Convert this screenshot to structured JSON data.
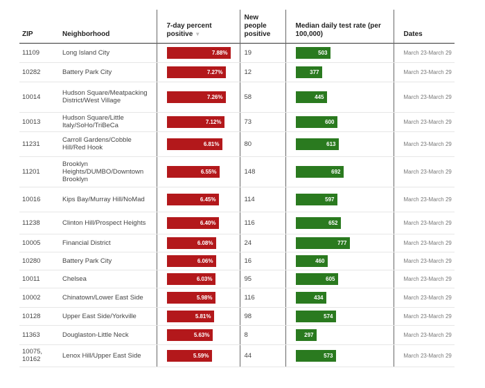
{
  "headers": {
    "zip": "ZIP",
    "neighborhood": "Neighborhood",
    "positive": "7-day percent positive",
    "sort_indicator": "▼",
    "new_people": "New people positive",
    "test_rate": "Median daily test rate (per 100,000)",
    "dates": "Dates"
  },
  "colors": {
    "positive_bar": "#b3181b",
    "test_bar": "#2a7a1f"
  },
  "scale": {
    "positive_max": 7.88,
    "test_rate_max": 777
  },
  "rows": [
    {
      "zip": "11109",
      "neighborhood": "Long Island City",
      "positive": "7.88%",
      "positive_value": 7.88,
      "new": "19",
      "rate": "503",
      "rate_value": 503,
      "dates": "March 23-March 29"
    },
    {
      "zip": "10282",
      "neighborhood": "Battery Park City",
      "positive": "7.27%",
      "positive_value": 7.27,
      "new": "12",
      "rate": "377",
      "rate_value": 377,
      "dates": "March 23-March 29"
    },
    {
      "zip": "10014",
      "neighborhood": "Hudson Square/Meatpacking District/West Village",
      "positive": "7.26%",
      "positive_value": 7.26,
      "new": "58",
      "rate": "445",
      "rate_value": 445,
      "dates": "March 23-March 29"
    },
    {
      "zip": "10013",
      "neighborhood": "Hudson Square/Little Italy/SoHo/TriBeCa",
      "positive": "7.12%",
      "positive_value": 7.12,
      "new": "73",
      "rate": "600",
      "rate_value": 600,
      "dates": "March 23-March 29"
    },
    {
      "zip": "11231",
      "neighborhood": "Carroll Gardens/Cobble Hill/Red Hook",
      "positive": "6.81%",
      "positive_value": 6.81,
      "new": "80",
      "rate": "613",
      "rate_value": 613,
      "dates": "March 23-March 29"
    },
    {
      "zip": "11201",
      "neighborhood": "Brooklyn Heights/DUMBO/Downtown Brooklyn",
      "positive": "6.55%",
      "positive_value": 6.55,
      "new": "148",
      "rate": "692",
      "rate_value": 692,
      "dates": "March 23-March 29"
    },
    {
      "zip": "10016",
      "neighborhood": "Kips Bay/Murray Hill/NoMad",
      "positive": "6.45%",
      "positive_value": 6.45,
      "new": "114",
      "rate": "597",
      "rate_value": 597,
      "dates": "March 23-March 29"
    },
    {
      "zip": "11238",
      "neighborhood": "Clinton Hill/Prospect Heights",
      "positive": "6.40%",
      "positive_value": 6.4,
      "new": "116",
      "rate": "652",
      "rate_value": 652,
      "dates": "March 23-March 29"
    },
    {
      "zip": "10005",
      "neighborhood": "Financial District",
      "positive": "6.08%",
      "positive_value": 6.08,
      "new": "24",
      "rate": "777",
      "rate_value": 777,
      "dates": "March 23-March 29"
    },
    {
      "zip": "10280",
      "neighborhood": "Battery Park City",
      "positive": "6.06%",
      "positive_value": 6.06,
      "new": "16",
      "rate": "460",
      "rate_value": 460,
      "dates": "March 23-March 29"
    },
    {
      "zip": "10011",
      "neighborhood": "Chelsea",
      "positive": "6.03%",
      "positive_value": 6.03,
      "new": "95",
      "rate": "605",
      "rate_value": 605,
      "dates": "March 23-March 29"
    },
    {
      "zip": "10002",
      "neighborhood": "Chinatown/Lower East Side",
      "positive": "5.98%",
      "positive_value": 5.98,
      "new": "116",
      "rate": "434",
      "rate_value": 434,
      "dates": "March 23-March 29"
    },
    {
      "zip": "10128",
      "neighborhood": "Upper East Side/Yorkville",
      "positive": "5.81%",
      "positive_value": 5.81,
      "new": "98",
      "rate": "574",
      "rate_value": 574,
      "dates": "March 23-March 29"
    },
    {
      "zip": "11363",
      "neighborhood": "Douglaston-Little Neck",
      "positive": "5.63%",
      "positive_value": 5.63,
      "new": "8",
      "rate": "297",
      "rate_value": 297,
      "dates": "March 23-March 29"
    },
    {
      "zip": "10075, 10162",
      "neighborhood": "Lenox Hill/Upper East Side",
      "positive": "5.59%",
      "positive_value": 5.59,
      "new": "44",
      "rate": "573",
      "rate_value": 573,
      "dates": "March 23-March 29"
    }
  ]
}
